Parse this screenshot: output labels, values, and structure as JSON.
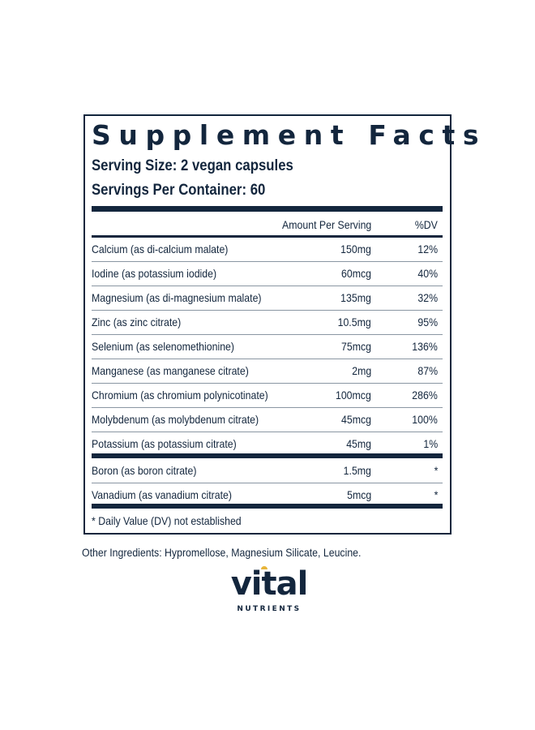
{
  "title": "Supplement Facts",
  "serving_size": "Serving Size: 2 vegan capsules",
  "servings_per_container": "Servings Per Container: 60",
  "header": {
    "amount": "Amount Per Serving",
    "dv": "%DV"
  },
  "rows": [
    {
      "name": "Calcium (as di-calcium malate)",
      "amount": "150mg",
      "dv": "12%"
    },
    {
      "name": "Iodine (as potassium iodide)",
      "amount": "60mcg",
      "dv": "40%"
    },
    {
      "name": "Magnesium (as di-magnesium malate)",
      "amount": "135mg",
      "dv": "32%"
    },
    {
      "name": "Zinc (as zinc citrate)",
      "amount": "10.5mg",
      "dv": "95%"
    },
    {
      "name": "Selenium (as selenomethionine)",
      "amount": "75mcg",
      "dv": "136%"
    },
    {
      "name": "Manganese (as manganese citrate)",
      "amount": "2mg",
      "dv": "87%"
    },
    {
      "name": "Chromium (as chromium polynicotinate)",
      "amount": "100mcg",
      "dv": "286%"
    },
    {
      "name": "Molybdenum (as molybdenum citrate)",
      "amount": "45mcg",
      "dv": "100%"
    },
    {
      "name": "Potassium (as potassium citrate)",
      "amount": "45mg",
      "dv": "1%"
    }
  ],
  "rows2": [
    {
      "name": "Boron (as boron citrate)",
      "amount": "1.5mg",
      "dv": "*"
    },
    {
      "name": "Vanadium (as vanadium citrate)",
      "amount": "5mcg",
      "dv": "*"
    }
  ],
  "footnote": "* Daily Value (DV) not established",
  "other_ingredients": "Other Ingredients: Hypromellose, Magnesium Silicate, Leucine.",
  "logo": {
    "word": "vital",
    "sub": "NUTRIENTS"
  },
  "colors": {
    "ink": "#13263d",
    "sun": "#e8b53a"
  }
}
